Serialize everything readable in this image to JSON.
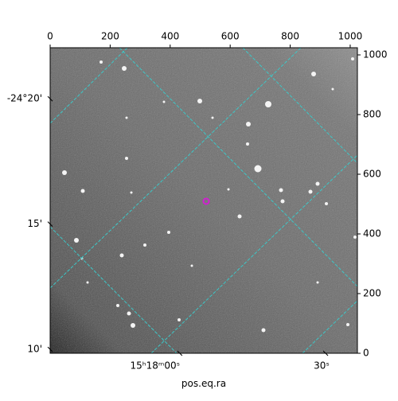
{
  "chart_data": {
    "type": "wcs-image",
    "xlabel": "pos.eq.ra",
    "xlim": [
      0,
      1024
    ],
    "ylim": [
      0,
      1024
    ],
    "xticks": [
      0,
      200,
      400,
      600,
      800,
      1000
    ],
    "yticks": [
      0,
      200,
      400,
      600,
      800,
      1000
    ],
    "ra_ticks": [
      {
        "value": 432,
        "label": "15ʰ18ᵐ00ˢ"
      },
      {
        "value": 918,
        "label": "30ˢ"
      }
    ],
    "dec_ticks": [
      {
        "value": 853,
        "label": "-24°20'"
      },
      {
        "value": 433,
        "label": "15'"
      },
      {
        "value": 13,
        "label": "10'"
      }
    ],
    "grid_color": "#3cc8c8",
    "marker_color": "#d020d0"
  }
}
